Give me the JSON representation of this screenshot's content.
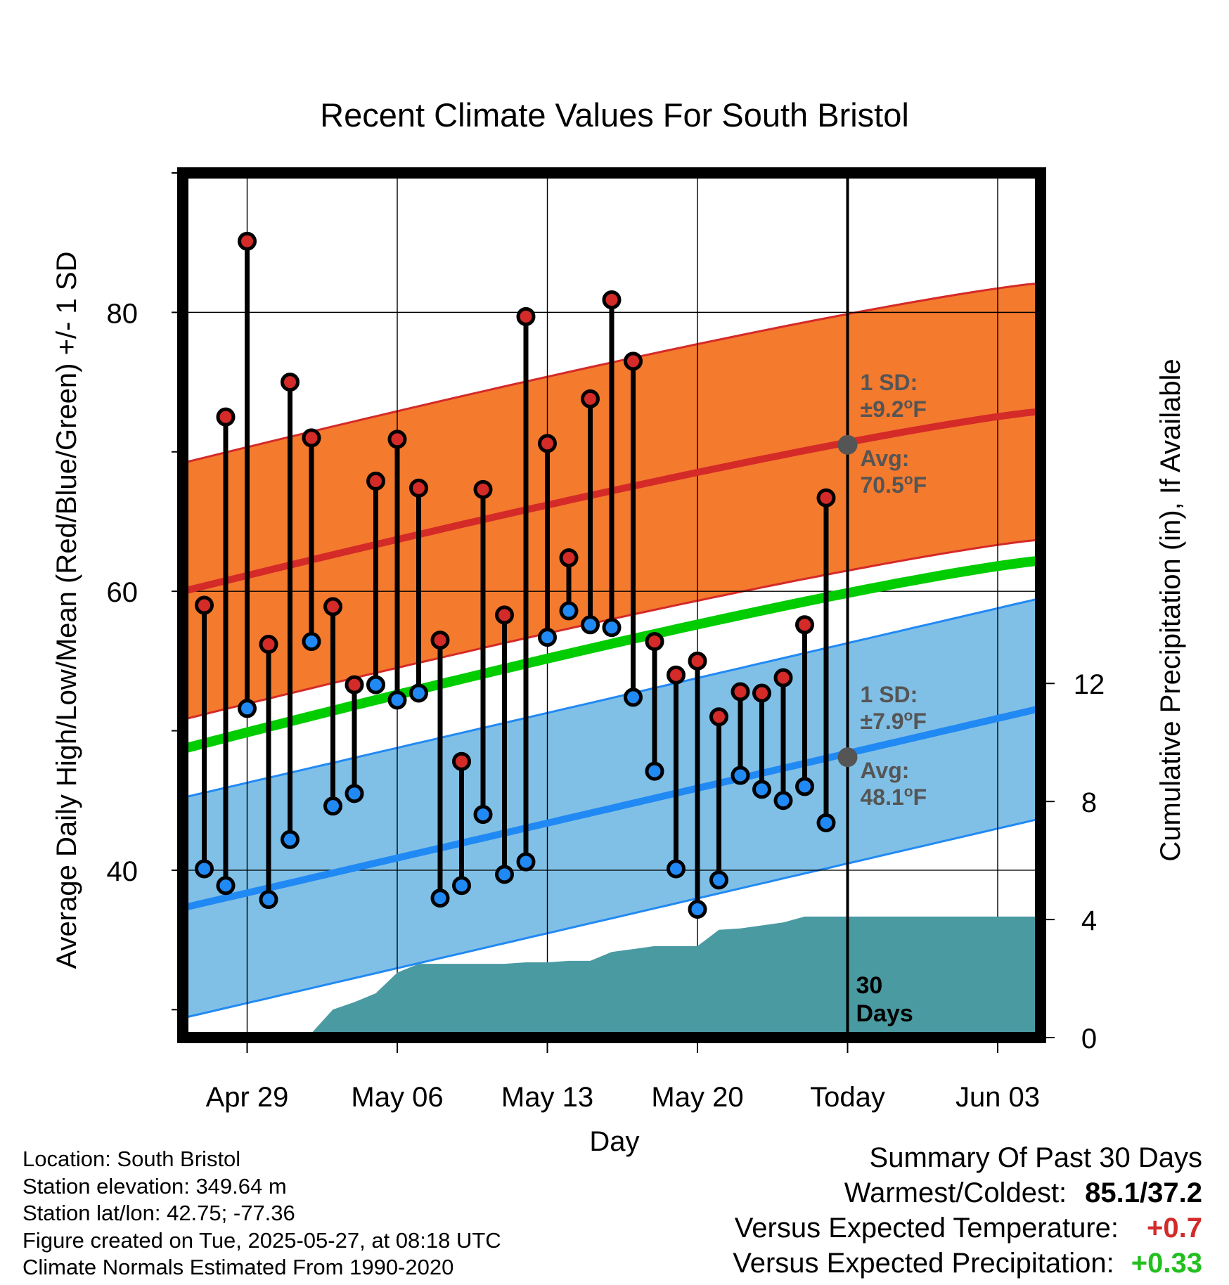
{
  "title": "Recent Climate Values For South Bristol",
  "chart_data": {
    "type": "line",
    "title": "Recent Climate Values For South Bristol",
    "xlabel": "Day",
    "ylabel": "Average Daily High/Low/Mean (Red/Blue/Green) +/- 1 SD",
    "y2label": "Cumulative Precipitation (in), If Available",
    "ylim": [
      28,
      90
    ],
    "y2lim": [
      0,
      29.3
    ],
    "y_ticks": [
      40,
      60,
      80
    ],
    "y2_ticks": [
      0,
      4,
      8,
      12
    ],
    "x_ticks": [
      "Apr 29",
      "May 06",
      "May 13",
      "May 20",
      "Today",
      "Jun 03"
    ],
    "x_start": "2025-04-26",
    "x_end": "2025-06-05",
    "x_tick_dates": [
      "2025-04-29",
      "2025-05-06",
      "2025-05-13",
      "2025-05-20",
      "2025-05-27",
      "2025-06-03"
    ],
    "today": "2025-05-27",
    "today_label": "30 Days",
    "grid": true,
    "daily": [
      {
        "date": "2025-04-27",
        "high": 59.0,
        "low": 40.1
      },
      {
        "date": "2025-04-28",
        "high": 72.5,
        "low": 38.9
      },
      {
        "date": "2025-04-29",
        "high": 85.1,
        "low": 51.6
      },
      {
        "date": "2025-04-30",
        "high": 56.2,
        "low": 37.9
      },
      {
        "date": "2025-05-01",
        "high": 75.0,
        "low": 42.2
      },
      {
        "date": "2025-05-02",
        "high": 71.0,
        "low": 56.4
      },
      {
        "date": "2025-05-03",
        "high": 58.9,
        "low": 44.6
      },
      {
        "date": "2025-05-04",
        "high": 53.3,
        "low": 45.5
      },
      {
        "date": "2025-05-05",
        "high": 67.9,
        "low": 53.3
      },
      {
        "date": "2025-05-06",
        "high": 70.9,
        "low": 52.2
      },
      {
        "date": "2025-05-07",
        "high": 67.4,
        "low": 52.7
      },
      {
        "date": "2025-05-08",
        "high": 56.5,
        "low": 38.0
      },
      {
        "date": "2025-05-09",
        "high": 47.8,
        "low": 38.9
      },
      {
        "date": "2025-05-10",
        "high": 67.3,
        "low": 44.0
      },
      {
        "date": "2025-05-11",
        "high": 58.3,
        "low": 39.7
      },
      {
        "date": "2025-05-12",
        "high": 79.7,
        "low": 40.6
      },
      {
        "date": "2025-05-13",
        "high": 70.6,
        "low": 56.7
      },
      {
        "date": "2025-05-14",
        "high": 62.4,
        "low": 58.6
      },
      {
        "date": "2025-05-15",
        "high": 73.8,
        "low": 57.6
      },
      {
        "date": "2025-05-16",
        "high": 80.9,
        "low": 57.4
      },
      {
        "date": "2025-05-17",
        "high": 76.5,
        "low": 52.4
      },
      {
        "date": "2025-05-18",
        "high": 56.4,
        "low": 47.1
      },
      {
        "date": "2025-05-19",
        "high": 54.0,
        "low": 40.1
      },
      {
        "date": "2025-05-20",
        "high": 55.0,
        "low": 37.2
      },
      {
        "date": "2025-05-21",
        "high": 51.0,
        "low": 39.3
      },
      {
        "date": "2025-05-22",
        "high": 52.8,
        "low": 46.8
      },
      {
        "date": "2025-05-23",
        "high": 52.7,
        "low": 45.8
      },
      {
        "date": "2025-05-24",
        "high": 53.8,
        "low": 45.0
      },
      {
        "date": "2025-05-25",
        "high": 57.6,
        "low": 46.0
      },
      {
        "date": "2025-05-26",
        "high": 66.7,
        "low": 43.4
      }
    ],
    "normals": {
      "high_avg_start": 60.0,
      "high_avg_end": 72.9,
      "high_sd": 9.2,
      "low_avg_start": 37.3,
      "low_avg_end": 51.6,
      "low_sd": 7.9,
      "mean_start": 48.7,
      "mean_end": 62.2
    },
    "precip_cumulative": [
      {
        "date": "2025-04-30",
        "value": 0.0
      },
      {
        "date": "2025-05-01",
        "value": 0.0
      },
      {
        "date": "2025-05-02",
        "value": 0.15
      },
      {
        "date": "2025-05-03",
        "value": 0.95
      },
      {
        "date": "2025-05-04",
        "value": 1.2
      },
      {
        "date": "2025-05-05",
        "value": 1.5
      },
      {
        "date": "2025-05-06",
        "value": 2.2
      },
      {
        "date": "2025-05-07",
        "value": 2.5
      },
      {
        "date": "2025-05-08",
        "value": 2.5
      },
      {
        "date": "2025-05-11",
        "value": 2.5
      },
      {
        "date": "2025-05-12",
        "value": 2.55
      },
      {
        "date": "2025-05-13",
        "value": 2.55
      },
      {
        "date": "2025-05-14",
        "value": 2.6
      },
      {
        "date": "2025-05-15",
        "value": 2.6
      },
      {
        "date": "2025-05-16",
        "value": 2.9
      },
      {
        "date": "2025-05-17",
        "value": 3.0
      },
      {
        "date": "2025-05-18",
        "value": 3.1
      },
      {
        "date": "2025-05-19",
        "value": 3.1
      },
      {
        "date": "2025-05-20",
        "value": 3.1
      },
      {
        "date": "2025-05-21",
        "value": 3.65
      },
      {
        "date": "2025-05-22",
        "value": 3.7
      },
      {
        "date": "2025-05-23",
        "value": 3.8
      },
      {
        "date": "2025-05-24",
        "value": 3.9
      },
      {
        "date": "2025-05-25",
        "value": 4.1
      },
      {
        "date": "2025-05-26",
        "value": 4.1
      },
      {
        "date": "2025-06-05",
        "value": 4.1
      }
    ],
    "annotations": {
      "high": {
        "sd_label": "1 SD:",
        "sd_value": "±9.2",
        "avg_label": "Avg:",
        "avg_value": "70.5",
        "unit": "F",
        "avg": 70.5
      },
      "low": {
        "sd_label": "1 SD:",
        "sd_value": "±7.9",
        "avg_label": "Avg:",
        "avg_value": "48.1",
        "unit": "F",
        "avg": 48.1
      }
    },
    "colors": {
      "high_band": "#f47a2e",
      "high_line": "#d42a28",
      "low_band": "#81c0e6",
      "low_line": "#2189f4",
      "mean_line": "#00cc00",
      "precip": "#4a9aa2",
      "high_dot": "#d42a28",
      "low_dot": "#2189f4"
    }
  },
  "footer": {
    "location": "Location: South Bristol",
    "elevation": "Station elevation: 349.64 m",
    "latlon": "Station lat/lon: 42.75; -77.36",
    "created": "Figure created on Tue, 2025-05-27, at 08:18 UTC",
    "normals": "Climate Normals Estimated From 1990-2020"
  },
  "summary": {
    "heading": "Summary Of Past 30 Days",
    "warmest_coldest_label": "Warmest/Coldest:",
    "warmest_coldest_value": "85.1/37.2",
    "temp_label": "Versus Expected Temperature:",
    "temp_value": "+0.7",
    "precip_label": "Versus Expected Precipitation:",
    "precip_value": "+0.33"
  }
}
